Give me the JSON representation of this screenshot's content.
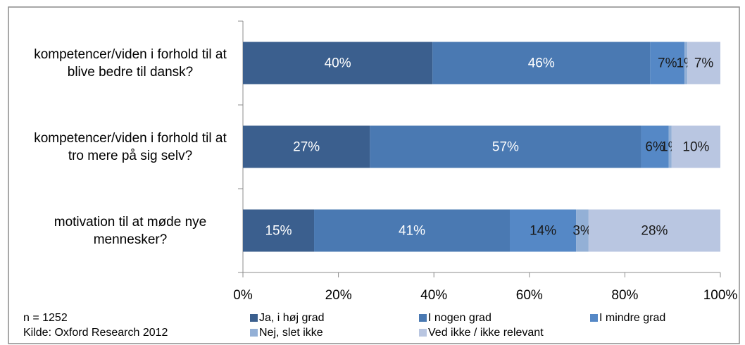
{
  "chart_data": {
    "type": "stacked_barh",
    "categories": [
      "kompetencer/viden i forhold til at blive bedre til dansk?",
      "kompetencer/viden i forhold til at tro mere på sig selv?",
      "motivation til at møde nye mennesker?"
    ],
    "series": [
      {
        "name": "Ja, i høj grad",
        "color": "#3b5f8e",
        "values": [
          39.7,
          26.6,
          14.9
        ],
        "value_labels": [
          "40%",
          "27%",
          "15%"
        ]
      },
      {
        "name": "I nogen grad",
        "color": "#4a79b2",
        "values": [
          45.6,
          56.8,
          41.0
        ],
        "value_labels": [
          "46%",
          "57%",
          "41%"
        ]
      },
      {
        "name": "I mindre grad",
        "color": "#5588c6",
        "values": [
          7.2,
          5.8,
          13.9
        ],
        "value_labels": [
          "7%",
          "6%",
          "14%"
        ]
      },
      {
        "name": "Nej, slet ikke",
        "color": "#93b0d6",
        "values": [
          0.6,
          0.6,
          2.6
        ],
        "value_labels": [
          "1%",
          "1%",
          "3%"
        ]
      },
      {
        "name": "Ved ikke / ikke relevant",
        "color": "#b9c6e1",
        "values": [
          6.9,
          10.2,
          27.6
        ],
        "value_labels": [
          "7%",
          "10%",
          "28%"
        ]
      }
    ],
    "xlim": [
      0,
      100
    ],
    "xticks": [
      {
        "value": 0,
        "label": "0%"
      },
      {
        "value": 20,
        "label": "20%"
      },
      {
        "value": 40,
        "label": "40%"
      },
      {
        "value": 60,
        "label": "60%"
      },
      {
        "value": 80,
        "label": "80%"
      },
      {
        "value": 100,
        "label": "100%"
      }
    ],
    "grid": false,
    "legend": "bottom",
    "notes": [
      "n = 1252",
      "Kilde: Oxford Research 2012"
    ]
  }
}
